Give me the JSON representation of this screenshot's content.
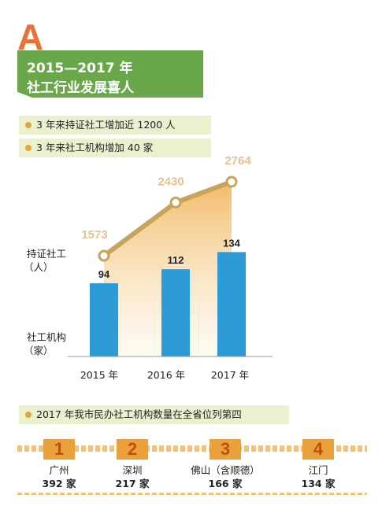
{
  "header": {
    "letter": "A",
    "title_line1": "2015—2017 年",
    "title_line2": "社工行业发展喜人"
  },
  "highlights": [
    "3 年来持证社工增加近 1200 人",
    "3 年来社工机构增加 40 家"
  ],
  "chart_data": {
    "type": "bar",
    "categories": [
      "2015 年",
      "2016 年",
      "2017 年"
    ],
    "series": [
      {
        "name": "持证社工（人）",
        "kind": "line",
        "values": [
          1573,
          2430,
          2764
        ],
        "color": "#c8a45a"
      },
      {
        "name": "社工机构（家）",
        "kind": "bar",
        "values": [
          94,
          112,
          134
        ],
        "color": "#2d9bd6"
      }
    ],
    "line_label_lines": [
      "持证社工",
      "（人）"
    ],
    "bar_label_lines": [
      "社工机构",
      "（家）"
    ],
    "legend": "none",
    "grid": false
  },
  "ranking": {
    "caption": "2017 年我市民办社工机构数量在全省位列第四",
    "items": [
      {
        "rank": "1",
        "city": "广州",
        "count": "392 家"
      },
      {
        "rank": "2",
        "city": "深圳",
        "count": "217 家"
      },
      {
        "rank": "3",
        "city": "佛山（含顺德）",
        "count": "166 家"
      },
      {
        "rank": "4",
        "city": "江门",
        "count": "134 家"
      }
    ]
  },
  "colors": {
    "accent_orange": "#e8733a",
    "banner_green": "#6aa74a",
    "pill_bg": "#eaf1cf",
    "dot": "#e9a23b",
    "bar_blue": "#2d9bd6",
    "line_gold": "#c8a45a"
  }
}
